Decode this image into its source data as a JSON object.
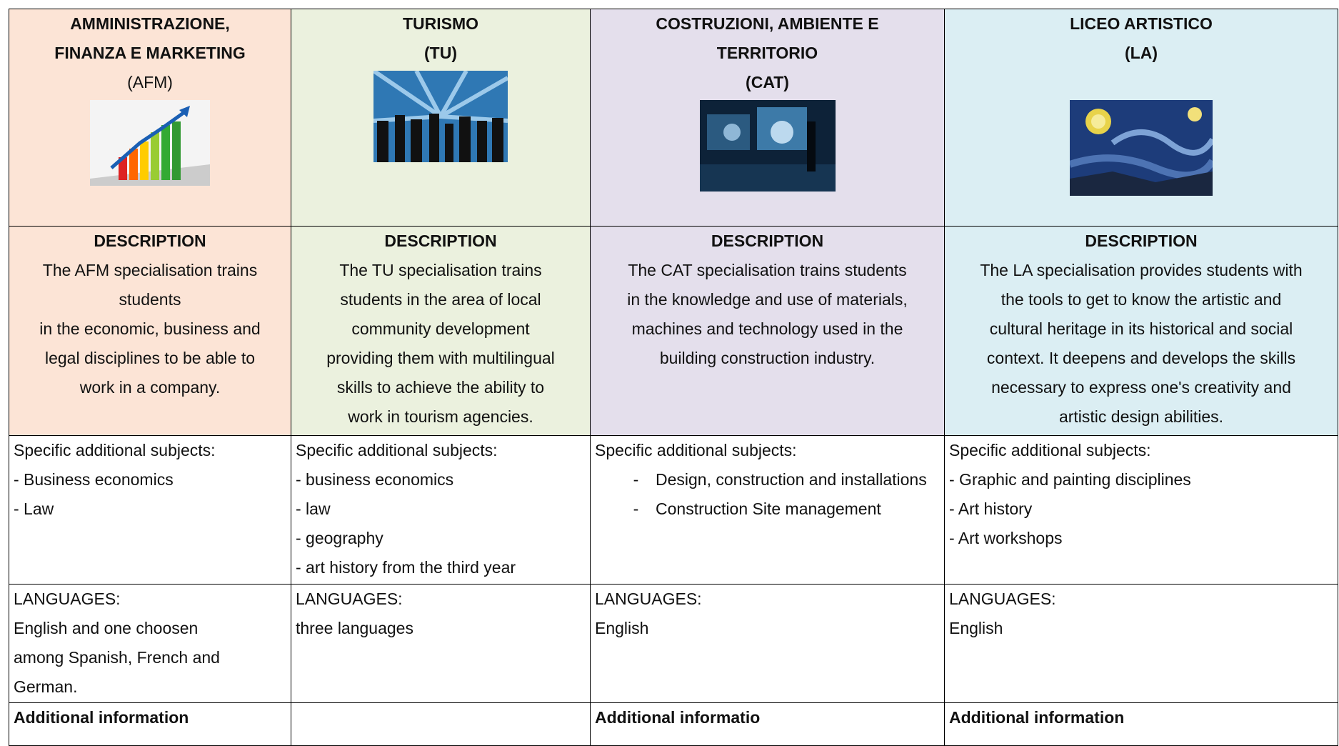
{
  "table": {
    "columns": [
      {
        "title": [
          "AMMINISTRAZIONE,",
          "FINANZA E MARKETING"
        ],
        "code": "(AFM)",
        "description_heading": "DESCRIPTION",
        "description": [
          "The AFM specialisation trains",
          "students",
          "in the economic, business and",
          "legal disciplines to be able to",
          "work in a company."
        ],
        "subjects_heading": "Specific additional subjects:",
        "subjects": [
          "- Business economics",
          "- Law"
        ],
        "languages_heading": "LANGUAGES:",
        "languages": [
          "English and one choosen",
          "among Spanish, French and",
          "German."
        ],
        "additional": "Additional information"
      },
      {
        "title": [
          "TURISMO",
          "(TU)"
        ],
        "code": null,
        "description_heading": "DESCRIPTION",
        "description": [
          "The TU specialisation trains",
          "students in the area of local",
          "community development",
          "providing them with multilingual",
          "skills to achieve the ability to",
          "work in tourism agencies."
        ],
        "subjects_heading": "Specific additional subjects:",
        "subjects": [
          "- business economics",
          "- law",
          "- geography",
          "- art history from the third year"
        ],
        "languages_heading": "LANGUAGES:",
        "languages": [
          "three languages"
        ],
        "additional": null
      },
      {
        "title": [
          "COSTRUZIONI, AMBIENTE E",
          "TERRITORIO",
          "(CAT)"
        ],
        "code": null,
        "description_heading": "DESCRIPTION",
        "description": [
          "The CAT specialisation trains students",
          "in the knowledge and use of materials,",
          "machines and technology used in the",
          "building construction industry."
        ],
        "subjects_heading": "Specific additional subjects:",
        "subjects": [
          {
            "bullet": "-",
            "text": "Design, construction and installations"
          },
          {
            "bullet": "-",
            "text": "Construction Site management"
          }
        ],
        "languages_heading": "LANGUAGES:",
        "languages": [
          "English"
        ],
        "additional": "Additional informatio"
      },
      {
        "title": [
          "LICEO ARTISTICO",
          "(LA)"
        ],
        "code": null,
        "description_heading": "DESCRIPTION",
        "description": [
          "The LA specialisation provides students with",
          "the tools to get to know the artistic and",
          "cultural heritage in its historical and social",
          "context. It deepens and develops the skills",
          "necessary to express one's creativity and",
          "artistic design abilities."
        ],
        "subjects_heading": "Specific additional subjects:",
        "subjects": [
          "- Graphic and painting disciplines",
          "- Art history",
          "- Art workshops"
        ],
        "languages_heading": "LANGUAGES:",
        "languages": [
          "English"
        ],
        "additional": "Additional information"
      }
    ]
  }
}
